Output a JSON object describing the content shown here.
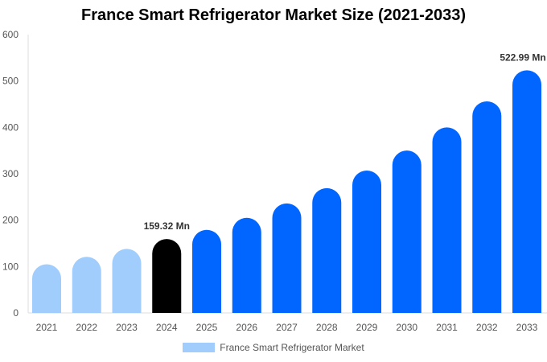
{
  "chart_data": {
    "type": "bar",
    "title": "France Smart Refrigerator Market Size (2021-2033)",
    "categories": [
      "2021",
      "2022",
      "2023",
      "2024",
      "2025",
      "2026",
      "2027",
      "2028",
      "2029",
      "2030",
      "2031",
      "2032",
      "2033"
    ],
    "series": [
      {
        "name": "France Smart Refrigerator Market",
        "values": [
          105,
          121,
          138,
          159.32,
          179,
          205,
          236,
          269,
          307,
          350,
          400,
          456,
          522.99
        ]
      }
    ],
    "bar_colors": [
      "#a0cdfc",
      "#a0cdfc",
      "#a0cdfc",
      "#000000",
      "#0066ff",
      "#0066ff",
      "#0066ff",
      "#0066ff",
      "#0066ff",
      "#0066ff",
      "#0066ff",
      "#0066ff",
      "#0066ff"
    ],
    "data_labels": [
      {
        "category": "2024",
        "text": "159.32 Mn"
      },
      {
        "category": "2033",
        "text": "522.99 Mn"
      }
    ],
    "yticks": [
      0,
      100,
      200,
      300,
      400,
      500,
      600
    ],
    "ylim": [
      0,
      600
    ],
    "xlabel": "",
    "ylabel": "",
    "grid": false,
    "legend_position": "bottom"
  }
}
